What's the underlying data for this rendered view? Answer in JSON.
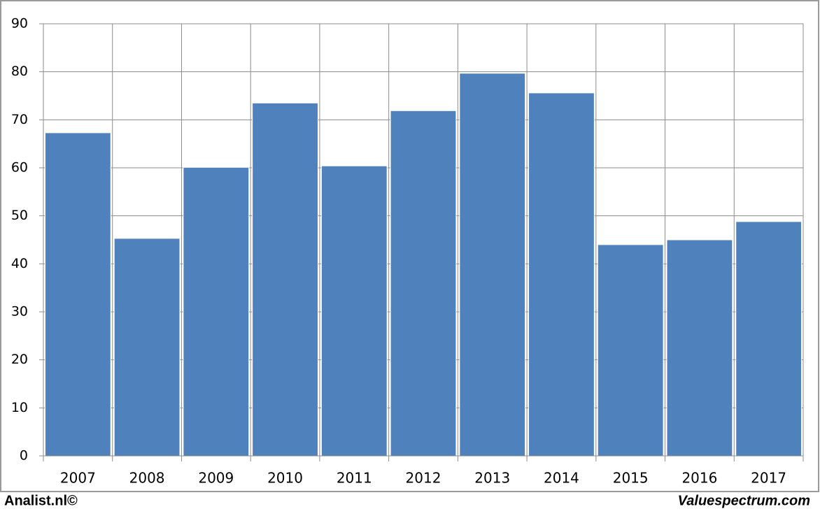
{
  "chart_data": {
    "type": "bar",
    "categories": [
      "2007",
      "2008",
      "2009",
      "2010",
      "2011",
      "2012",
      "2013",
      "2014",
      "2015",
      "2016",
      "2017"
    ],
    "values": [
      67.3,
      45.3,
      60.1,
      73.5,
      60.4,
      71.9,
      79.7,
      75.6,
      44.0,
      45.0,
      48.8
    ],
    "color": "#4f81bd",
    "ylim": [
      0,
      90
    ],
    "yticks": [
      0,
      10,
      20,
      30,
      40,
      50,
      60,
      70,
      80,
      90
    ],
    "grid": true
  },
  "footer": {
    "left": "Analist.nl©",
    "right": "Valuespectrum.com"
  }
}
